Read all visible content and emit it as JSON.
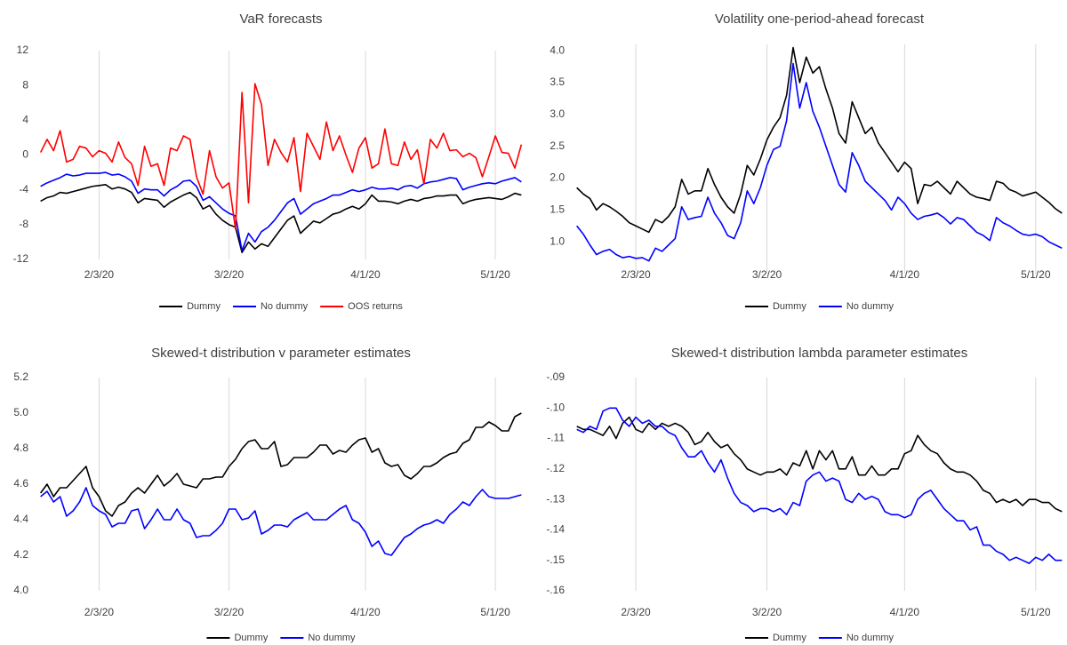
{
  "chart_data": [
    {
      "type": "line",
      "title": "VaR forecasts",
      "categories": [
        null,
        null,
        null,
        null,
        null,
        null,
        null,
        null,
        null,
        "2/3/20",
        null,
        null,
        null,
        null,
        null,
        null,
        null,
        null,
        null,
        null,
        null,
        null,
        null,
        null,
        null,
        null,
        null,
        null,
        null,
        "3/2/20",
        null,
        null,
        null,
        null,
        null,
        null,
        null,
        null,
        null,
        null,
        null,
        null,
        null,
        null,
        null,
        null,
        null,
        null,
        null,
        null,
        "4/1/20",
        null,
        null,
        null,
        null,
        null,
        null,
        null,
        null,
        null,
        null,
        null,
        null,
        null,
        null,
        null,
        null,
        null,
        null,
        null,
        "5/1/20",
        null,
        null,
        null,
        null
      ],
      "ylim": [
        -12,
        12
      ],
      "yticks": [
        -12,
        -8,
        -4,
        0,
        4,
        8,
        12
      ],
      "grid": true,
      "series": [
        {
          "name": "Dummy",
          "color": "#000000",
          "values": [
            -5.3,
            -4.9,
            -4.7,
            -4.3,
            -4.4,
            -4.2,
            -4.0,
            -3.8,
            -3.6,
            -3.5,
            -3.4,
            -3.9,
            -3.7,
            -3.9,
            -4.3,
            -5.5,
            -5.0,
            -5.1,
            -5.2,
            -6.0,
            -5.4,
            -5.0,
            -4.6,
            -4.3,
            -4.9,
            -6.2,
            -5.8,
            -6.8,
            -7.5,
            -8.0,
            -8.3,
            -11.2,
            -10.0,
            -10.8,
            -10.2,
            -10.5,
            -9.5,
            -8.5,
            -7.5,
            -7.0,
            -9.0,
            -8.3,
            -7.6,
            -7.8,
            -7.3,
            -6.8,
            -6.6,
            -6.2,
            -5.9,
            -6.2,
            -5.6,
            -4.6,
            -5.3,
            -5.3,
            -5.4,
            -5.6,
            -5.3,
            -5.1,
            -5.3,
            -5.0,
            -4.9,
            -4.7,
            -4.7,
            -4.6,
            -4.6,
            -5.6,
            -5.3,
            -5.1,
            -5.0,
            -4.9,
            -5.0,
            -5.1,
            -4.8,
            -4.4,
            -4.6
          ]
        },
        {
          "name": "No dummy",
          "color": "#0000ff",
          "values": [
            -3.6,
            -3.2,
            -2.9,
            -2.6,
            -2.2,
            -2.4,
            -2.3,
            -2.1,
            -2.1,
            -2.1,
            -2.0,
            -2.3,
            -2.2,
            -2.5,
            -3.0,
            -4.4,
            -3.9,
            -4.0,
            -4.0,
            -4.7,
            -4.0,
            -3.6,
            -3.0,
            -2.9,
            -3.6,
            -5.2,
            -4.8,
            -5.5,
            -6.2,
            -6.7,
            -7.0,
            -11.0,
            -9.0,
            -10.0,
            -8.8,
            -8.3,
            -7.5,
            -6.5,
            -5.5,
            -5.0,
            -6.8,
            -6.2,
            -5.6,
            -5.3,
            -5.0,
            -4.6,
            -4.6,
            -4.3,
            -4.0,
            -4.2,
            -4.0,
            -3.7,
            -3.9,
            -3.9,
            -3.8,
            -4.0,
            -3.6,
            -3.5,
            -3.8,
            -3.3,
            -3.1,
            -3.0,
            -2.8,
            -2.6,
            -2.7,
            -4.0,
            -3.7,
            -3.5,
            -3.3,
            -3.2,
            -3.3,
            -3.0,
            -2.8,
            -2.6,
            -3.1
          ]
        },
        {
          "name": "OOS returns",
          "color": "#ff0000",
          "values": [
            0.3,
            1.8,
            0.5,
            2.8,
            -0.8,
            -0.5,
            1.0,
            0.8,
            -0.2,
            0.5,
            0.2,
            -0.8,
            1.5,
            -0.3,
            -1.0,
            -3.5,
            1.0,
            -1.3,
            -1.0,
            -3.5,
            0.8,
            0.5,
            2.2,
            1.8,
            -2.5,
            -4.5,
            0.5,
            -2.5,
            -3.8,
            -3.2,
            -8.5,
            7.2,
            -5.5,
            8.2,
            5.8,
            -1.2,
            1.8,
            0.3,
            -0.8,
            2.0,
            -4.2,
            2.5,
            1.0,
            -0.5,
            3.8,
            0.5,
            2.2,
            0.0,
            -2.0,
            0.8,
            2.0,
            -1.5,
            -1.0,
            3.0,
            -1.0,
            -1.2,
            1.5,
            -0.5,
            0.6,
            -3.3,
            1.8,
            0.8,
            2.5,
            0.5,
            0.6,
            -0.2,
            0.2,
            -0.3,
            -2.5,
            -0.2,
            2.2,
            0.3,
            0.2,
            -1.5,
            1.2
          ]
        }
      ]
    },
    {
      "type": "line",
      "title": "Volatility one-period-ahead forecast",
      "categories": [
        null,
        null,
        null,
        null,
        null,
        null,
        null,
        null,
        null,
        "2/3/20",
        null,
        null,
        null,
        null,
        null,
        null,
        null,
        null,
        null,
        null,
        null,
        null,
        null,
        null,
        null,
        null,
        null,
        null,
        null,
        "3/2/20",
        null,
        null,
        null,
        null,
        null,
        null,
        null,
        null,
        null,
        null,
        null,
        null,
        null,
        null,
        null,
        null,
        null,
        null,
        null,
        null,
        "4/1/20",
        null,
        null,
        null,
        null,
        null,
        null,
        null,
        null,
        null,
        null,
        null,
        null,
        null,
        null,
        null,
        null,
        null,
        null,
        null,
        "5/1/20",
        null,
        null,
        null,
        null
      ],
      "ylim": [
        0.5,
        4.1
      ],
      "yticks": [
        {
          "value": 1,
          "label": "1.0"
        },
        1.5,
        {
          "value": 2,
          "label": "2.0"
        },
        2.5,
        {
          "value": 3,
          "label": "3.0"
        },
        3.5,
        {
          "value": 4,
          "label": "4.0"
        }
      ],
      "grid": true,
      "series": [
        {
          "name": "Dummy",
          "color": "#000000",
          "values": [
            1.85,
            1.75,
            1.68,
            1.5,
            1.6,
            1.55,
            1.48,
            1.4,
            1.3,
            1.25,
            1.2,
            1.15,
            1.35,
            1.3,
            1.4,
            1.55,
            1.98,
            1.75,
            1.8,
            1.8,
            2.15,
            1.9,
            1.7,
            1.55,
            1.45,
            1.75,
            2.2,
            2.05,
            2.3,
            2.6,
            2.8,
            2.95,
            3.3,
            4.05,
            3.5,
            3.9,
            3.65,
            3.75,
            3.4,
            3.1,
            2.7,
            2.55,
            3.2,
            2.95,
            2.7,
            2.8,
            2.55,
            2.4,
            2.25,
            2.1,
            2.25,
            2.15,
            1.6,
            1.9,
            1.88,
            1.95,
            1.85,
            1.75,
            1.95,
            1.85,
            1.75,
            1.7,
            1.68,
            1.65,
            1.95,
            1.92,
            1.82,
            1.78,
            1.72,
            1.75,
            1.78,
            1.7,
            1.62,
            1.52,
            1.45
          ]
        },
        {
          "name": "No dummy",
          "color": "#0000ff",
          "values": [
            1.25,
            1.12,
            0.95,
            0.8,
            0.85,
            0.88,
            0.8,
            0.75,
            0.77,
            0.74,
            0.75,
            0.7,
            0.9,
            0.85,
            0.95,
            1.05,
            1.55,
            1.35,
            1.38,
            1.4,
            1.7,
            1.45,
            1.3,
            1.1,
            1.05,
            1.3,
            1.8,
            1.6,
            1.85,
            2.2,
            2.45,
            2.5,
            2.9,
            3.8,
            3.1,
            3.5,
            3.05,
            2.8,
            2.5,
            2.2,
            1.9,
            1.78,
            2.4,
            2.2,
            1.95,
            1.85,
            1.75,
            1.65,
            1.5,
            1.7,
            1.6,
            1.45,
            1.35,
            1.4,
            1.42,
            1.45,
            1.38,
            1.28,
            1.38,
            1.35,
            1.25,
            1.15,
            1.1,
            1.02,
            1.38,
            1.3,
            1.25,
            1.18,
            1.12,
            1.1,
            1.12,
            1.08,
            1.0,
            0.95,
            0.9
          ]
        }
      ]
    },
    {
      "type": "line",
      "title": "Skewed-t distribution v parameter estimates",
      "categories": [
        null,
        null,
        null,
        null,
        null,
        null,
        null,
        null,
        null,
        "2/3/20",
        null,
        null,
        null,
        null,
        null,
        null,
        null,
        null,
        null,
        null,
        null,
        null,
        null,
        null,
        null,
        null,
        null,
        null,
        null,
        "3/2/20",
        null,
        null,
        null,
        null,
        null,
        null,
        null,
        null,
        null,
        null,
        null,
        null,
        null,
        null,
        null,
        null,
        null,
        null,
        null,
        null,
        "4/1/20",
        null,
        null,
        null,
        null,
        null,
        null,
        null,
        null,
        null,
        null,
        null,
        null,
        null,
        null,
        null,
        null,
        null,
        null,
        null,
        "5/1/20",
        null,
        null,
        null,
        null
      ],
      "ylim": [
        4,
        5.2
      ],
      "yticks": [
        {
          "value": 4,
          "label": "4.0"
        },
        4.2,
        4.4,
        4.6,
        4.8,
        {
          "value": 5,
          "label": "5.0"
        },
        5.2
      ],
      "grid": true,
      "series": [
        {
          "name": "Dummy",
          "color": "#000000",
          "values": [
            4.55,
            4.6,
            4.53,
            4.58,
            4.58,
            4.62,
            4.66,
            4.7,
            4.58,
            4.53,
            4.45,
            4.42,
            4.48,
            4.5,
            4.55,
            4.58,
            4.55,
            4.6,
            4.65,
            4.59,
            4.62,
            4.66,
            4.6,
            4.59,
            4.58,
            4.63,
            4.63,
            4.64,
            4.64,
            4.7,
            4.74,
            4.8,
            4.84,
            4.85,
            4.8,
            4.8,
            4.84,
            4.7,
            4.71,
            4.75,
            4.75,
            4.75,
            4.78,
            4.82,
            4.82,
            4.77,
            4.79,
            4.78,
            4.82,
            4.85,
            4.86,
            4.78,
            4.8,
            4.72,
            4.7,
            4.71,
            4.65,
            4.63,
            4.66,
            4.7,
            4.7,
            4.72,
            4.75,
            4.77,
            4.78,
            4.83,
            4.85,
            4.92,
            4.92,
            4.95,
            4.93,
            4.9,
            4.9,
            4.98,
            5.0
          ]
        },
        {
          "name": "No dummy",
          "color": "#0000ff",
          "values": [
            4.53,
            4.56,
            4.5,
            4.53,
            4.42,
            4.45,
            4.5,
            4.58,
            4.48,
            4.45,
            4.43,
            4.36,
            4.38,
            4.38,
            4.45,
            4.46,
            4.35,
            4.4,
            4.46,
            4.4,
            4.4,
            4.46,
            4.4,
            4.38,
            4.3,
            4.31,
            4.31,
            4.34,
            4.38,
            4.46,
            4.46,
            4.4,
            4.41,
            4.45,
            4.32,
            4.34,
            4.37,
            4.37,
            4.36,
            4.4,
            4.42,
            4.44,
            4.4,
            4.4,
            4.4,
            4.43,
            4.46,
            4.48,
            4.4,
            4.38,
            4.33,
            4.25,
            4.28,
            4.21,
            4.2,
            4.25,
            4.3,
            4.32,
            4.35,
            4.37,
            4.38,
            4.4,
            4.38,
            4.43,
            4.46,
            4.5,
            4.48,
            4.53,
            4.57,
            4.53,
            4.52,
            4.52,
            4.52,
            4.53,
            4.54
          ]
        }
      ]
    },
    {
      "type": "line",
      "title": "Skewed-t distribution lambda parameter estimates",
      "categories": [
        null,
        null,
        null,
        null,
        null,
        null,
        null,
        null,
        null,
        "2/3/20",
        null,
        null,
        null,
        null,
        null,
        null,
        null,
        null,
        null,
        null,
        null,
        null,
        null,
        null,
        null,
        null,
        null,
        null,
        null,
        "3/2/20",
        null,
        null,
        null,
        null,
        null,
        null,
        null,
        null,
        null,
        null,
        null,
        null,
        null,
        null,
        null,
        null,
        null,
        null,
        null,
        null,
        "4/1/20",
        null,
        null,
        null,
        null,
        null,
        null,
        null,
        null,
        null,
        null,
        null,
        null,
        null,
        null,
        null,
        null,
        null,
        null,
        null,
        "5/1/20",
        null,
        null,
        null,
        null
      ],
      "ylim": [
        -0.16,
        -0.09
      ],
      "yticks": [
        {
          "value": -0.16,
          "label": "-.16"
        },
        {
          "value": -0.15,
          "label": "-.15"
        },
        {
          "value": -0.14,
          "label": "-.14"
        },
        {
          "value": -0.13,
          "label": "-.13"
        },
        {
          "value": -0.12,
          "label": "-.12"
        },
        {
          "value": -0.11,
          "label": "-.11"
        },
        {
          "value": -0.1,
          "label": "-.10"
        },
        {
          "value": -0.09,
          "label": "-.09"
        }
      ],
      "grid": true,
      "series": [
        {
          "name": "Dummy",
          "color": "#000000",
          "values": [
            -0.106,
            -0.107,
            -0.107,
            -0.108,
            -0.109,
            -0.106,
            -0.11,
            -0.105,
            -0.103,
            -0.107,
            -0.108,
            -0.105,
            -0.107,
            -0.105,
            -0.106,
            -0.105,
            -0.106,
            -0.108,
            -0.112,
            -0.111,
            -0.108,
            -0.111,
            -0.113,
            -0.112,
            -0.115,
            -0.117,
            -0.12,
            -0.121,
            -0.122,
            -0.121,
            -0.121,
            -0.12,
            -0.122,
            -0.118,
            -0.119,
            -0.114,
            -0.12,
            -0.114,
            -0.117,
            -0.114,
            -0.12,
            -0.12,
            -0.116,
            -0.122,
            -0.122,
            -0.119,
            -0.122,
            -0.122,
            -0.12,
            -0.12,
            -0.115,
            -0.114,
            -0.109,
            -0.112,
            -0.114,
            -0.115,
            -0.118,
            -0.12,
            -0.121,
            -0.121,
            -0.122,
            -0.124,
            -0.127,
            -0.128,
            -0.131,
            -0.13,
            -0.131,
            -0.13,
            -0.132,
            -0.13,
            -0.13,
            -0.131,
            -0.131,
            -0.133,
            -0.134
          ]
        },
        {
          "name": "No dummy",
          "color": "#0000ff",
          "values": [
            -0.107,
            -0.108,
            -0.106,
            -0.107,
            -0.101,
            -0.1,
            -0.1,
            -0.104,
            -0.106,
            -0.103,
            -0.105,
            -0.104,
            -0.106,
            -0.106,
            -0.108,
            -0.109,
            -0.113,
            -0.116,
            -0.116,
            -0.114,
            -0.118,
            -0.121,
            -0.117,
            -0.123,
            -0.128,
            -0.131,
            -0.132,
            -0.134,
            -0.133,
            -0.133,
            -0.134,
            -0.133,
            -0.135,
            -0.131,
            -0.132,
            -0.124,
            -0.122,
            -0.121,
            -0.124,
            -0.123,
            -0.124,
            -0.13,
            -0.131,
            -0.128,
            -0.13,
            -0.129,
            -0.13,
            -0.134,
            -0.135,
            -0.135,
            -0.136,
            -0.135,
            -0.13,
            -0.128,
            -0.127,
            -0.13,
            -0.133,
            -0.135,
            -0.137,
            -0.137,
            -0.14,
            -0.139,
            -0.145,
            -0.145,
            -0.147,
            -0.148,
            -0.15,
            -0.149,
            -0.15,
            -0.151,
            -0.149,
            -0.15,
            -0.148,
            -0.15,
            -0.15
          ]
        }
      ]
    }
  ]
}
